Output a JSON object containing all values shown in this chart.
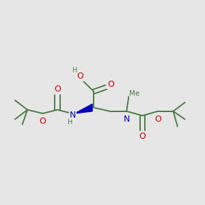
{
  "background_color": "#e6e6e6",
  "bond_color": "#4a7a45",
  "bond_width": 1.4,
  "atom_colors": {
    "O": "#cc0000",
    "N": "#0000bb",
    "C": "#4a7a45",
    "H": "#4a7a45"
  },
  "figsize": [
    3.0,
    3.0
  ],
  "dpi": 100
}
